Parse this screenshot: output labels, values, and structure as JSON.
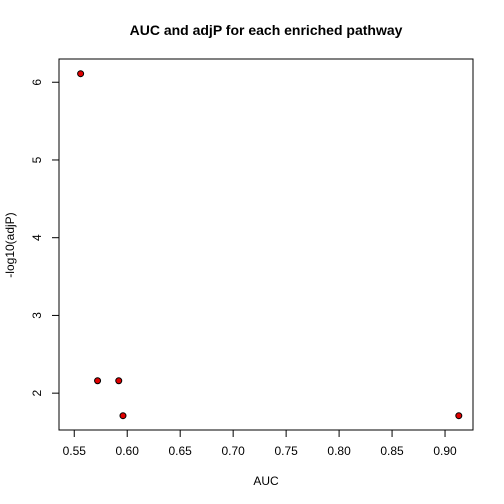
{
  "chart_data": {
    "type": "scatter",
    "title": "AUC and adjP for each enriched pathway",
    "xlabel": "AUC",
    "ylabel": "-log10(adjP)",
    "x_ticks": [
      "0.55",
      "0.60",
      "0.65",
      "0.70",
      "0.75",
      "0.80",
      "0.85",
      "0.90"
    ],
    "y_ticks": [
      "2",
      "3",
      "4",
      "5",
      "6"
    ],
    "xlim": [
      0.5356,
      0.9264
    ],
    "ylim": [
      1.526,
      6.299
    ],
    "point_color": "#e00000",
    "grid": false,
    "x": [
      0.556,
      0.572,
      0.592,
      0.596,
      0.913
    ],
    "y": [
      6.11,
      2.16,
      2.16,
      1.71,
      1.71
    ]
  }
}
